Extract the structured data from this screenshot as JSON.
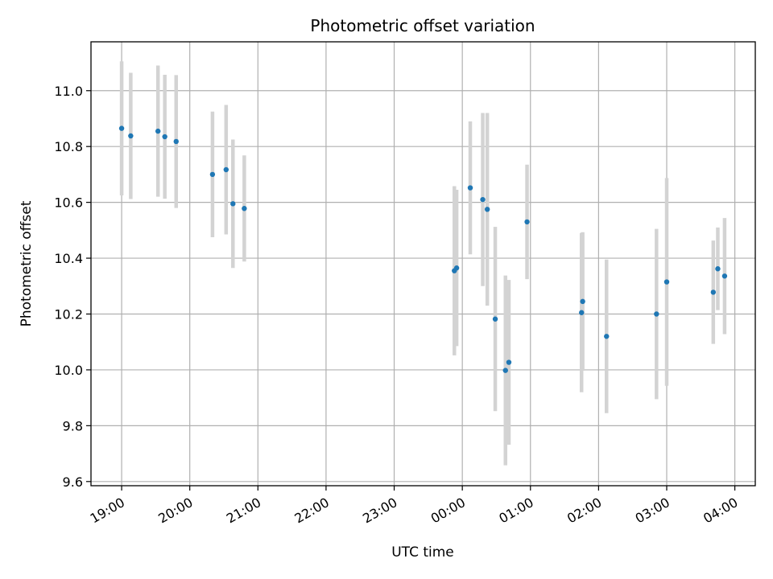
{
  "chart_data": {
    "type": "scatter",
    "title": "Photometric offset variation",
    "xlabel": "UTC time",
    "ylabel": "Photometric offset",
    "x_ticks": [
      "19:00",
      "20:00",
      "21:00",
      "22:00",
      "23:00",
      "00:00",
      "01:00",
      "02:00",
      "03:00",
      "04:00"
    ],
    "y_ticks": [
      "9.6",
      "9.8",
      "10.0",
      "10.2",
      "10.4",
      "10.6",
      "10.8",
      "11.0"
    ],
    "xlim": [
      "18:33",
      "04:18"
    ],
    "ylim": [
      9.585,
      11.175
    ],
    "grid": true,
    "point_color": "#1f77b4",
    "errorbar_color": "#d3d3d3",
    "points": [
      {
        "x": "19:00",
        "y": 10.865,
        "err": 0.24
      },
      {
        "x": "19:08",
        "y": 10.838,
        "err": 0.226
      },
      {
        "x": "19:32",
        "y": 10.855,
        "err": 0.235
      },
      {
        "x": "19:38",
        "y": 10.835,
        "err": 0.222
      },
      {
        "x": "19:48",
        "y": 10.818,
        "err": 0.238
      },
      {
        "x": "20:20",
        "y": 10.7,
        "err": 0.225
      },
      {
        "x": "20:32",
        "y": 10.717,
        "err": 0.232
      },
      {
        "x": "20:38",
        "y": 10.595,
        "err": 0.23
      },
      {
        "x": "20:48",
        "y": 10.578,
        "err": 0.19
      },
      {
        "x": "23:53",
        "y": 10.355,
        "err": 0.303
      },
      {
        "x": "23:55",
        "y": 10.365,
        "err": 0.28
      },
      {
        "x": "00:07",
        "y": 10.652,
        "err": 0.238
      },
      {
        "x": "00:18",
        "y": 10.61,
        "err": 0.31
      },
      {
        "x": "00:22",
        "y": 10.575,
        "err": 0.345
      },
      {
        "x": "00:29",
        "y": 10.182,
        "err": 0.33
      },
      {
        "x": "00:38",
        "y": 9.998,
        "err": 0.34
      },
      {
        "x": "00:41",
        "y": 10.027,
        "err": 0.295
      },
      {
        "x": "00:57",
        "y": 10.53,
        "err": 0.205
      },
      {
        "x": "01:45",
        "y": 10.205,
        "err": 0.285
      },
      {
        "x": "01:46",
        "y": 10.245,
        "err": 0.248
      },
      {
        "x": "02:07",
        "y": 10.12,
        "err": 0.275
      },
      {
        "x": "02:51",
        "y": 10.2,
        "err": 0.305
      },
      {
        "x": "03:00",
        "y": 10.315,
        "err": 0.372
      },
      {
        "x": "03:41",
        "y": 10.278,
        "err": 0.185
      },
      {
        "x": "03:45",
        "y": 10.362,
        "err": 0.148
      },
      {
        "x": "03:51",
        "y": 10.336,
        "err": 0.208
      }
    ]
  }
}
